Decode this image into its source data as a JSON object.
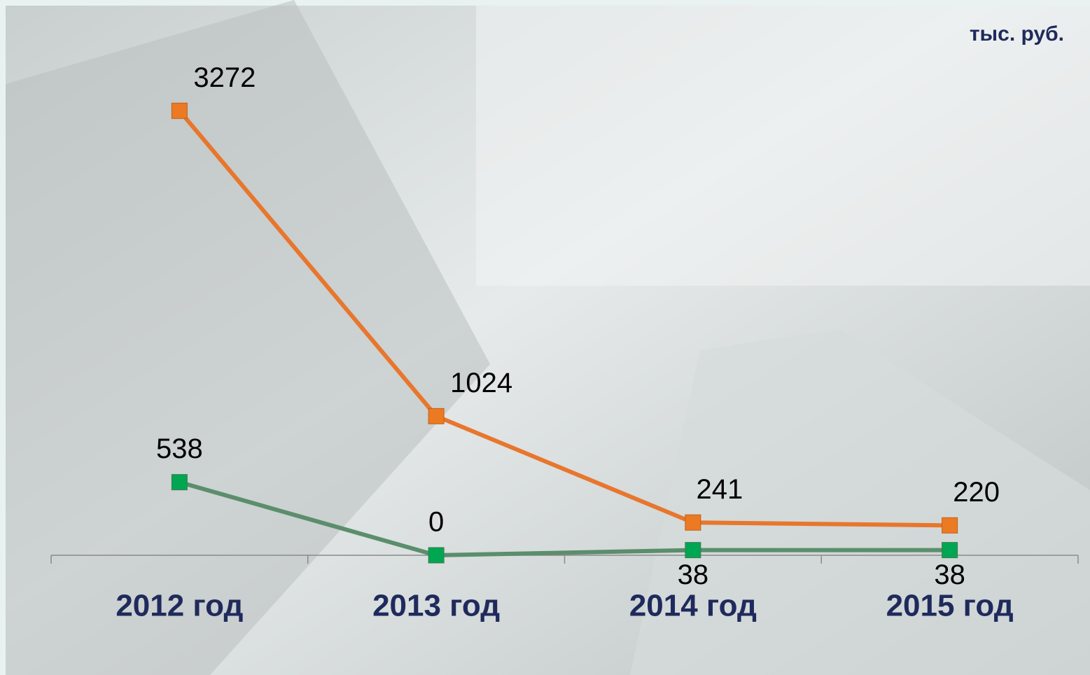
{
  "chart_data": {
    "type": "line",
    "unit": "тыс. руб.",
    "categories": [
      "2012 год",
      "2013 год",
      "2014 год",
      "2015 год"
    ],
    "series": [
      {
        "color": "#e8762d",
        "values": [
          3272,
          1024,
          241,
          220
        ]
      },
      {
        "color": "#5b8e6c",
        "values": [
          538,
          0,
          38,
          38
        ]
      }
    ],
    "ylim": [
      0,
      3500
    ]
  }
}
